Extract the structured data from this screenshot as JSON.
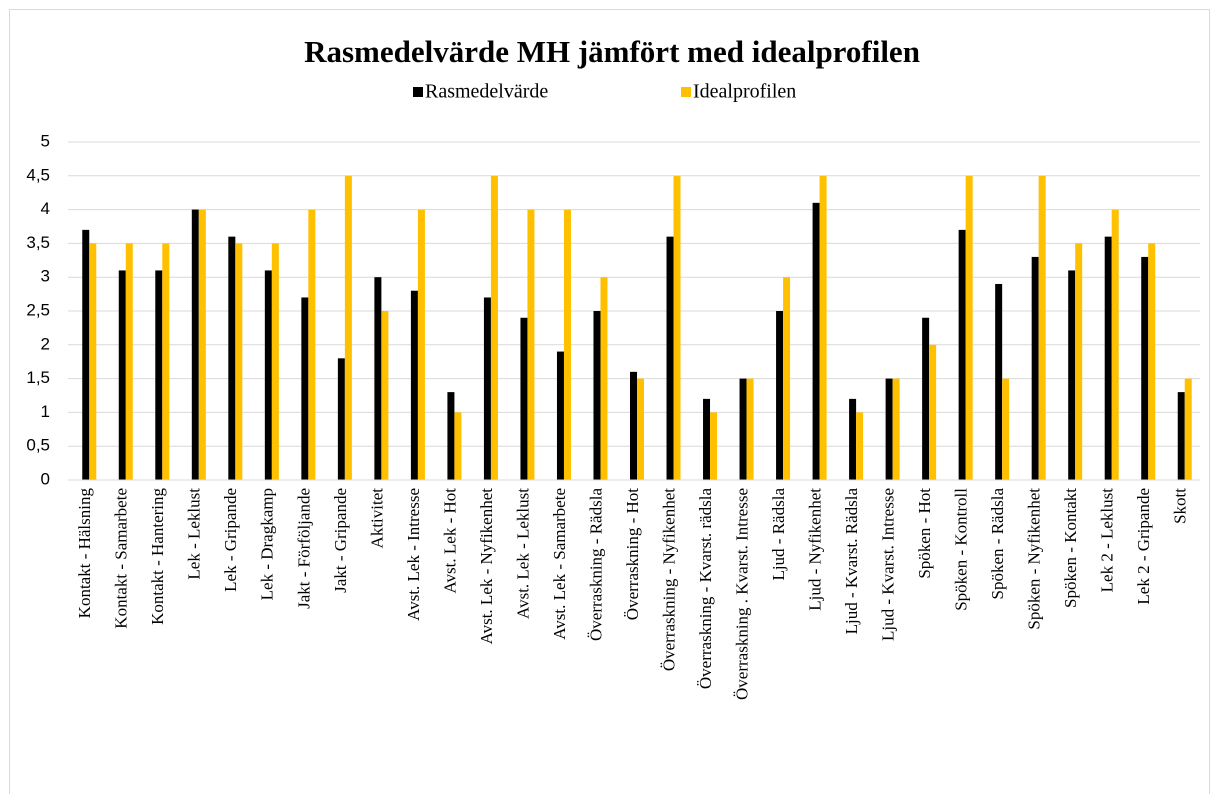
{
  "chart_data": {
    "type": "bar",
    "title": "Rasmedelvärde MH jämfört med idealprofilen",
    "categories": [
      "Kontakt - Hälsning",
      "Kontakt - Samarbete",
      "Kontakt - Hantering",
      "Lek - Leklust",
      "Lek - Gripande",
      "Lek - Dragkamp",
      "Jakt - Förföljande",
      "Jakt - Gripande",
      "Aktivitet",
      "Avst. Lek - Intresse",
      "Avst. Lek - Hot",
      "Avst. Lek - Nyfikenhet",
      "Avst. Lek - Leklust",
      "Avst. Lek - Samarbete",
      "Överraskning - Rädsla",
      "Överraskning - Hot",
      "Överraskning - Nyfikenhet",
      "Överraskning - Kvarst. rädsla",
      "Överraskning . Kvarst. Intresse",
      "Ljud - Rädsla",
      "Ljud - Nyfikenhet",
      "Ljud - Kvarst. Rädsla",
      "Ljud - Kvarst. Intresse",
      "Spöken - Hot",
      "Spöken - Kontroll",
      "Spöken - Rädsla",
      "Spöken - Nyfikenhet",
      "Spöken - Kontakt",
      "Lek 2 - Leklust",
      "Lek 2 - Gripande",
      "Skott"
    ],
    "series": [
      {
        "name": "Rasmedelvärde",
        "color": "#000000",
        "values": [
          3.7,
          3.1,
          3.1,
          4,
          3.6,
          3.1,
          2.7,
          1.8,
          3,
          2.8,
          1.3,
          2.7,
          2.4,
          1.9,
          2.5,
          1.6,
          3.6,
          1.2,
          1.5,
          2.5,
          4.1,
          1.2,
          1.5,
          2.4,
          3.7,
          2.9,
          3.3,
          3.1,
          3.6,
          3.3,
          1.3
        ]
      },
      {
        "name": "Idealprofilen",
        "color": "#ffc000",
        "values": [
          3.5,
          3.5,
          3.5,
          4,
          3.5,
          3.5,
          4,
          4.5,
          2.5,
          4,
          1,
          4.5,
          4,
          4,
          3,
          1.5,
          4.5,
          1,
          1.5,
          3,
          4.5,
          1,
          1.5,
          2,
          4.5,
          1.5,
          4.5,
          3.5,
          4,
          3.5,
          1.5
        ]
      }
    ],
    "ylim": [
      0,
      5
    ],
    "yticks": [
      0,
      {
        "value": 0.5,
        "label": "0,5"
      },
      1,
      {
        "value": 1.5,
        "label": "1,5"
      },
      2,
      {
        "value": 2.5,
        "label": "2,5"
      },
      3,
      {
        "value": 3.5,
        "label": "3,5"
      },
      4,
      {
        "value": 4.5,
        "label": "4,5"
      },
      5
    ],
    "grid": true,
    "legend": "top"
  }
}
